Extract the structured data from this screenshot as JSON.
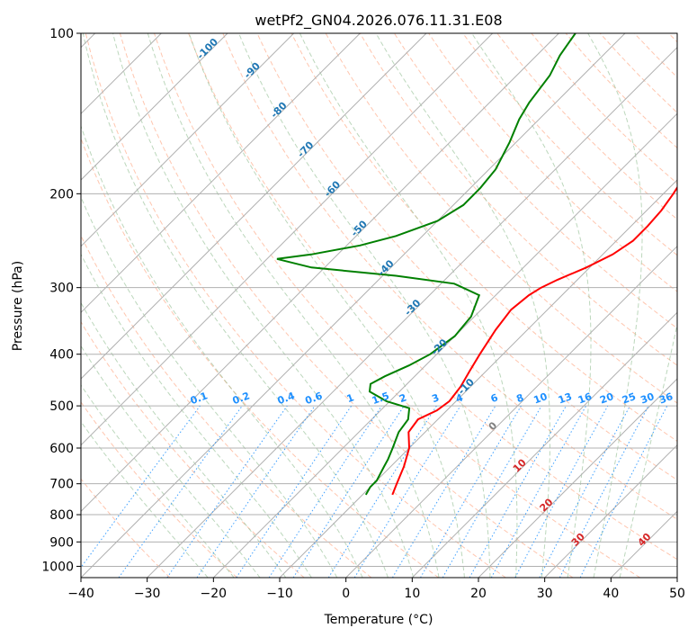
{
  "chart_data": {
    "type": "skew-t",
    "title": "wetPf2_GN04.2026.076.11.31.E08",
    "xlabel": "Temperature (°C)",
    "ylabel": "Pressure (hPa)",
    "xlim": [
      -40,
      50
    ],
    "ylim": [
      1050,
      100
    ],
    "x_ticks": [
      -40,
      -30,
      -20,
      -10,
      0,
      10,
      20,
      30,
      40,
      50
    ],
    "x_tick_labels": [
      "−40",
      "−30",
      "−20",
      "−10",
      "0",
      "10",
      "20",
      "30",
      "40",
      "50"
    ],
    "y_ticks": [
      100,
      200,
      300,
      400,
      500,
      600,
      700,
      800,
      900,
      1000
    ],
    "y_tick_labels": [
      "100",
      "200",
      "300",
      "400",
      "500",
      "600",
      "700",
      "800",
      "900",
      "1000"
    ],
    "colors": {
      "temperature": "#ff0000",
      "dewpoint": "#008000",
      "isotherm": "#b0b0b0",
      "dry_adiabat": "#ffa07a",
      "moist_adiabat": "#8fbc8f",
      "mixing_ratio": "#1e90ff",
      "freezing_level_label": "#808080",
      "isotherm_neg_label": "#1f77b4",
      "isotherm_pos_label": "#d62728"
    },
    "series": [
      {
        "name": "Temperature",
        "points": [
          [
            734,
            -5.5
          ],
          [
            700,
            -6.5
          ],
          [
            650,
            -8.0
          ],
          [
            600,
            -10.0
          ],
          [
            560,
            -12.5
          ],
          [
            530,
            -13.0
          ],
          [
            510,
            -11.5
          ],
          [
            490,
            -11.0
          ],
          [
            460,
            -11.5
          ],
          [
            430,
            -12.5
          ],
          [
            400,
            -13.5
          ],
          [
            360,
            -14.8
          ],
          [
            330,
            -15.5
          ],
          [
            310,
            -15.0
          ],
          [
            300,
            -14.3
          ],
          [
            290,
            -13.0
          ],
          [
            275,
            -10.5
          ],
          [
            260,
            -8.5
          ],
          [
            245,
            -7.5
          ],
          [
            230,
            -7.5
          ],
          [
            215,
            -7.8
          ],
          [
            200,
            -8.5
          ],
          [
            185,
            -9.5
          ],
          [
            170,
            -11.0
          ],
          [
            155,
            -13.5
          ],
          [
            140,
            -16.0
          ],
          [
            130,
            -18.5
          ],
          [
            120,
            -21.5
          ],
          [
            110,
            -23.5
          ],
          [
            100,
            -25.5
          ]
        ]
      },
      {
        "name": "Dewpoint",
        "points": [
          [
            734,
            -9.5
          ],
          [
            710,
            -10.0
          ],
          [
            690,
            -10.0
          ],
          [
            670,
            -10.5
          ],
          [
            650,
            -11.0
          ],
          [
            630,
            -11.5
          ],
          [
            600,
            -12.5
          ],
          [
            560,
            -14.0
          ],
          [
            530,
            -14.5
          ],
          [
            505,
            -16.0
          ],
          [
            490,
            -20.5
          ],
          [
            470,
            -24.5
          ],
          [
            455,
            -25.5
          ],
          [
            440,
            -24.5
          ],
          [
            420,
            -22.5
          ],
          [
            400,
            -21.0
          ],
          [
            370,
            -20.0
          ],
          [
            340,
            -20.5
          ],
          [
            310,
            -22.5
          ],
          [
            295,
            -28.0
          ],
          [
            285,
            -38.0
          ],
          [
            275,
            -52.0
          ],
          [
            265,
            -58.5
          ],
          [
            260,
            -54.0
          ],
          [
            250,
            -48.0
          ],
          [
            240,
            -44.0
          ],
          [
            225,
            -40.0
          ],
          [
            210,
            -38.5
          ],
          [
            195,
            -38.5
          ],
          [
            180,
            -39.0
          ],
          [
            160,
            -41.0
          ],
          [
            145,
            -43.0
          ],
          [
            135,
            -44.0
          ],
          [
            120,
            -45.0
          ],
          [
            110,
            -46.5
          ],
          [
            100,
            -47.5
          ]
        ]
      }
    ],
    "isotherm_labels": [
      "-100",
      "-90",
      "-80",
      "-70",
      "-60",
      "-50",
      "-40",
      "-30",
      "-20",
      "-10",
      "0",
      "10",
      "20",
      "30",
      "40"
    ],
    "mixing_ratio_labels": [
      "0.1",
      "0.2",
      "0.4",
      "0.6",
      "1",
      "1.5",
      "2",
      "3",
      "4",
      "6",
      "8",
      "10",
      "13",
      "16",
      "20",
      "25",
      "30",
      "36"
    ],
    "mixing_ratio_values": [
      0.1,
      0.2,
      0.4,
      0.6,
      1,
      1.5,
      2,
      3,
      4,
      6,
      8,
      10,
      13,
      16,
      20,
      25,
      30,
      36
    ],
    "grid": true
  }
}
